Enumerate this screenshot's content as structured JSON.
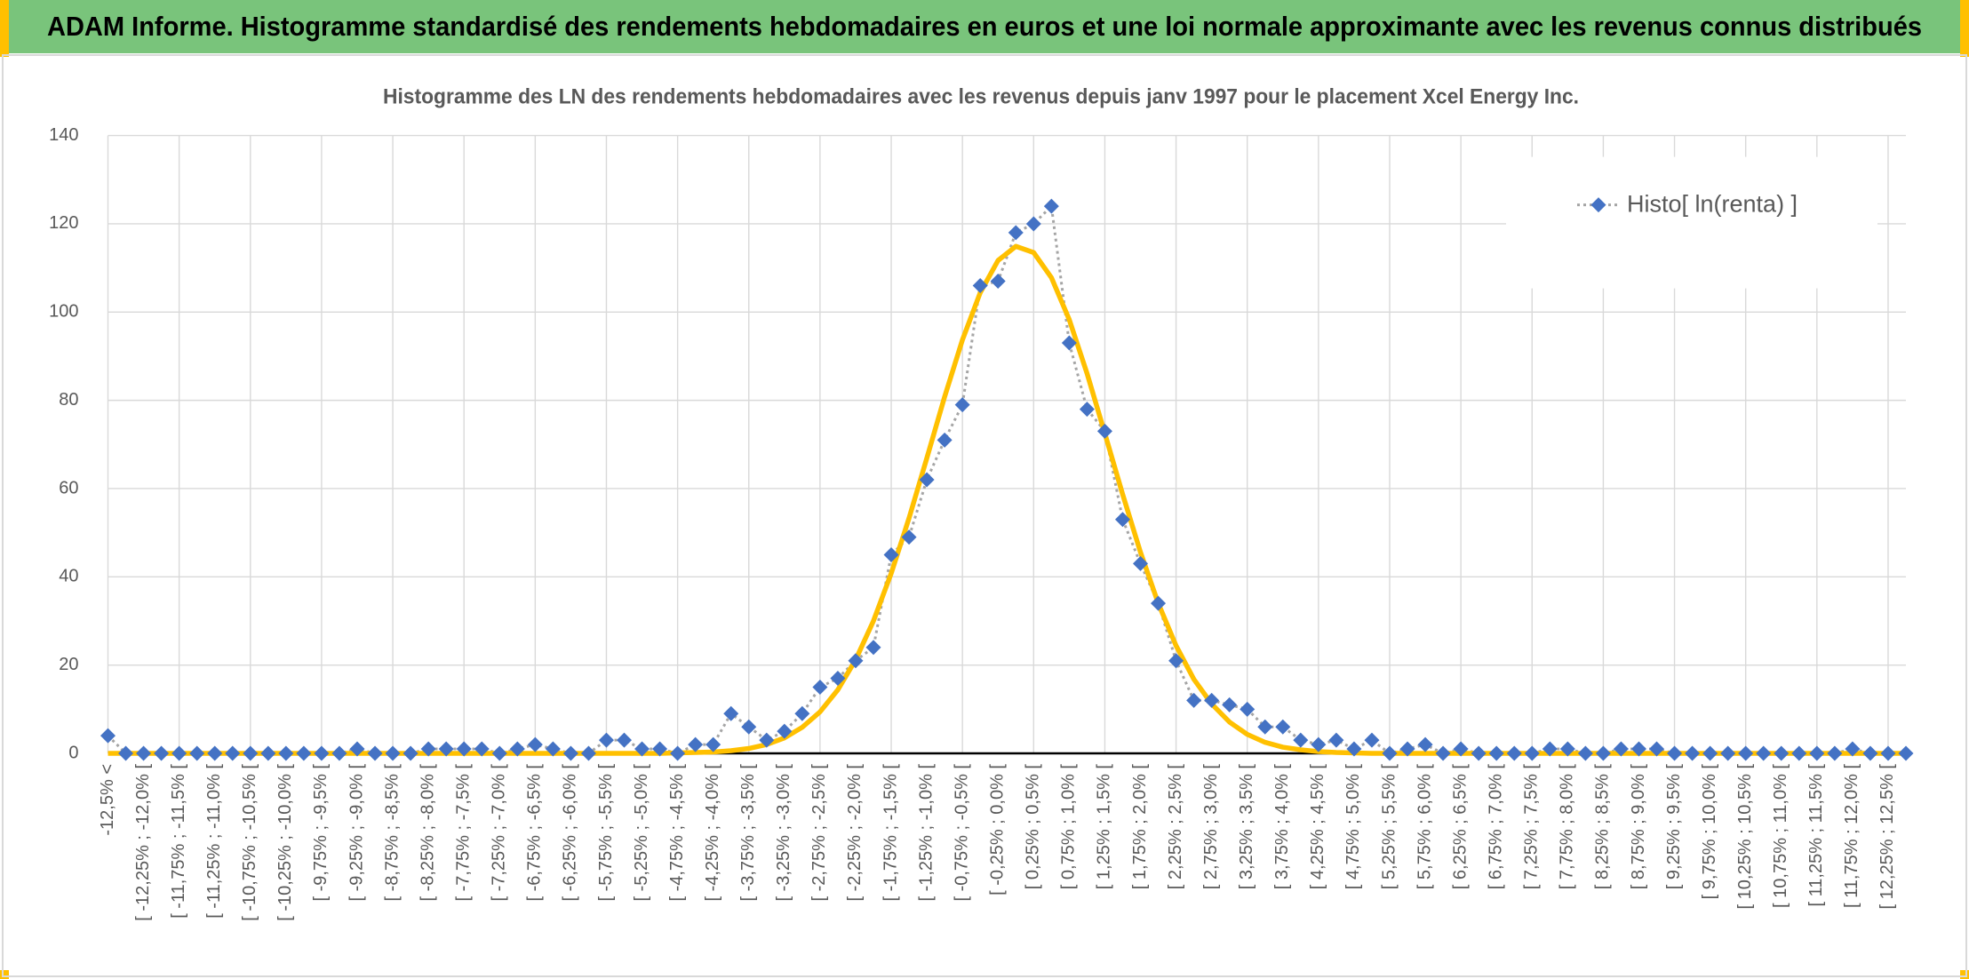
{
  "header": {
    "title": "ADAM Informe. Histogramme standardisé des rendements hebdomadaires en euros et une loi normale approximante avec les revenus connus distribués"
  },
  "chart_data": {
    "type": "line",
    "title": "Histogramme des LN des rendements hebdomadaires avec les revenus depuis janv 1997 pour le placement Xcel Energy Inc.",
    "categories": [
      "-12,5% <",
      null,
      "[ -12,25% ; -12,0% [",
      null,
      "[ -11,75% ; -11,5% [",
      null,
      "[ -11,25% ; -11,0% [",
      null,
      "[ -10,75% ; -10,5% [",
      null,
      "[ -10,25% ; -10,0% [",
      null,
      "[ -9,75% ; -9,5% [",
      null,
      "[ -9,25% ; -9,0% [",
      null,
      "[ -8,75% ; -8,5% [",
      null,
      "[ -8,25% ; -8,0% [",
      null,
      "[ -7,75% ; -7,5% [",
      null,
      "[ -7,25% ; -7,0% [",
      null,
      "[ -6,75% ; -6,5% [",
      null,
      "[ -6,25% ; -6,0% [",
      null,
      "[ -5,75% ; -5,5% [",
      null,
      "[ -5,25% ; -5,0% [",
      null,
      "[ -4,75% ; -4,5% [",
      null,
      "[ -4,25% ; -4,0% [",
      null,
      "[ -3,75% ; -3,5% [",
      null,
      "[ -3,25% ; -3,0% [",
      null,
      "[ -2,75% ; -2,5% [",
      null,
      "[ -2,25% ; -2,0% [",
      null,
      "[ -1,75% ; -1,5% [",
      null,
      "[ -1,25% ; -1,0% [",
      null,
      "[ -0,75% ; -0,5% [",
      null,
      "[ -0,25% ; 0,0% [",
      null,
      "[ 0,25% ; 0,5% [",
      null,
      "[ 0,75% ; 1,0% [",
      null,
      "[ 1,25% ; 1,5% [",
      null,
      "[ 1,75% ; 2,0% [",
      null,
      "[ 2,25% ; 2,5% [",
      null,
      "[ 2,75% ; 3,0% [",
      null,
      "[ 3,25% ; 3,5% [",
      null,
      "[ 3,75% ; 4,0% [",
      null,
      "[ 4,25% ; 4,5% [",
      null,
      "[ 4,75% ; 5,0% [",
      null,
      "[ 5,25% ; 5,5% [",
      null,
      "[ 5,75% ; 6,0% [",
      null,
      "[ 6,25% ; 6,5% [",
      null,
      "[ 6,75% ; 7,0% [",
      null,
      "[ 7,25% ; 7,5% [",
      null,
      "[ 7,75% ; 8,0% [",
      null,
      "[ 8,25% ; 8,5% [",
      null,
      "[ 8,75% ; 9,0% [",
      null,
      "[ 9,25% ; 9,5% [",
      null,
      "[ 9,75% ; 10,0% [",
      null,
      "[ 10,25% ; 10,5% [",
      null,
      "[ 10,75% ; 11,0% [",
      null,
      "[ 11,25% ; 11,5% [",
      null,
      "[ 11,75% ; 12,0% [",
      null,
      "[ 12,25% ; 12,5% [",
      null
    ],
    "series": [
      {
        "name": "Histo[ ln(renta) ]",
        "color": "#4472c4",
        "line_color": "#a5a5a5",
        "values": [
          4,
          0,
          0,
          0,
          0,
          0,
          0,
          0,
          0,
          0,
          0,
          0,
          0,
          0,
          1,
          0,
          0,
          0,
          1,
          1,
          1,
          1,
          0,
          1,
          2,
          1,
          0,
          0,
          3,
          3,
          1,
          1,
          0,
          2,
          2,
          9,
          6,
          3,
          5,
          9,
          15,
          17,
          21,
          24,
          45,
          49,
          62,
          71,
          79,
          106,
          107,
          118,
          120,
          124,
          93,
          78,
          73,
          53,
          43,
          34,
          21,
          12,
          12,
          11,
          10,
          6,
          6,
          3,
          2,
          3,
          1,
          3,
          0,
          1,
          2,
          0,
          1,
          0,
          0,
          0,
          0,
          1,
          1,
          0,
          0,
          1,
          1,
          1,
          0,
          0,
          0,
          0,
          0,
          0,
          0,
          0,
          0,
          0,
          1,
          0,
          0,
          0
        ]
      },
      {
        "color": "#ffc000",
        "values": [
          0,
          0,
          0,
          0,
          0,
          0,
          0,
          0,
          0,
          0,
          0,
          0,
          0,
          0,
          0,
          0,
          0,
          0,
          0,
          0,
          0,
          0,
          0,
          0,
          0,
          0,
          0,
          0,
          0,
          0,
          0,
          0,
          0.1,
          0.2,
          0.3,
          0.6,
          1.1,
          2.0,
          3.5,
          5.9,
          9.4,
          14.4,
          21.2,
          30.0,
          40.8,
          53.3,
          66.9,
          80.8,
          93.7,
          104.4,
          111.7,
          114.9,
          113.5,
          107.8,
          98.3,
          86.1,
          72.5,
          58.7,
          45.6,
          34.0,
          24.4,
          16.8,
          11.2,
          7.1,
          4.3,
          2.5,
          1.4,
          0.8,
          0.4,
          0.2,
          0.1,
          0,
          0,
          0,
          0,
          0,
          0,
          0,
          0,
          0,
          0,
          0,
          0,
          0,
          0,
          0,
          0,
          0,
          0,
          0,
          0,
          0,
          0,
          0,
          0,
          0,
          0,
          0,
          0,
          0,
          0,
          0
        ]
      }
    ],
    "ylim": [
      0,
      140
    ],
    "yticks": [
      0,
      20,
      40,
      60,
      80,
      100,
      120,
      140
    ],
    "grid": true,
    "legend": "upper right"
  }
}
